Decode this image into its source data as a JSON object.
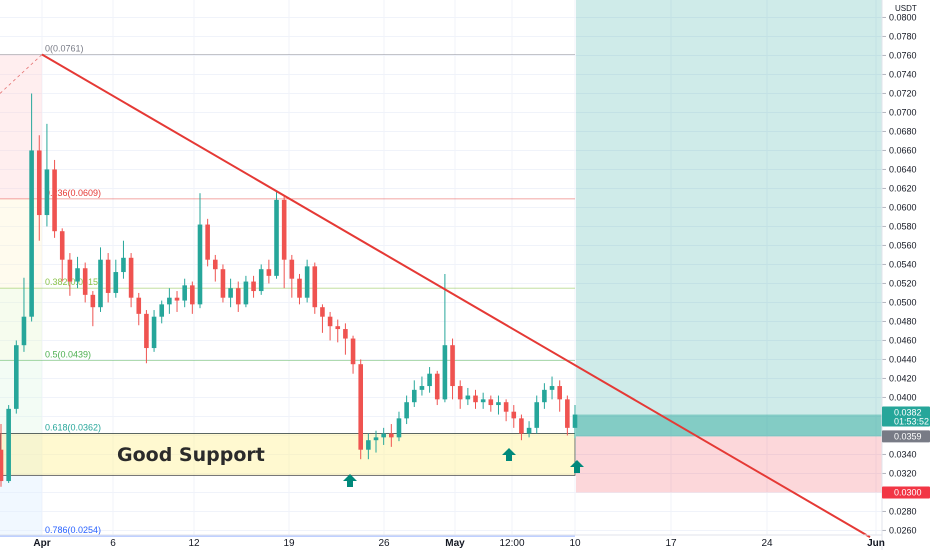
{
  "chart_data": {
    "type": "candlestick",
    "currency": "USDT",
    "y_ticks": [
      "0.0800",
      "0.0780",
      "0.0760",
      "0.0740",
      "0.0720",
      "0.0700",
      "0.0680",
      "0.0660",
      "0.0640",
      "0.0620",
      "0.0600",
      "0.0580",
      "0.0560",
      "0.0540",
      "0.0520",
      "0.0500",
      "0.0480",
      "0.0460",
      "0.0440",
      "0.0420",
      "0.0400",
      "0.0380",
      "0.0360",
      "0.0340",
      "0.0320",
      "0.0300",
      "0.0280",
      "0.0260"
    ],
    "x_ticks": [
      {
        "label": "Apr",
        "bold": true
      },
      {
        "label": "6",
        "bold": false
      },
      {
        "label": "12",
        "bold": false
      },
      {
        "label": "19",
        "bold": false
      },
      {
        "label": "26",
        "bold": false
      },
      {
        "label": "May",
        "bold": true
      },
      {
        "label": "12:00",
        "bold": false
      },
      {
        "label": "10",
        "bold": false
      },
      {
        "label": "17",
        "bold": false
      },
      {
        "label": "24",
        "bold": false
      },
      {
        "label": "Jun",
        "bold": true
      }
    ],
    "fibonacci": [
      {
        "label": "0(0.0761)",
        "value": 0.0761,
        "color": "#787b86"
      },
      {
        "label": "0.236(0.0609)",
        "value": 0.0609,
        "color": "#e53935"
      },
      {
        "label": "0.382(0.0515)",
        "value": 0.0515,
        "color": "#8bc34a"
      },
      {
        "label": "0.5(0.0439)",
        "value": 0.0439,
        "color": "#4caf50"
      },
      {
        "label": "0.618(0.0362)",
        "value": 0.0362,
        "color": "#26a69a"
      },
      {
        "label": "0.786(0.0254)",
        "value": 0.0254,
        "color": "#2962ff"
      }
    ],
    "support_zone": {
      "label": "Good Support",
      "top": 0.0362,
      "bottom": 0.0318
    },
    "trendline": {
      "from": 0.0761,
      "to": 0.0253
    },
    "position": {
      "entry": 0.0359,
      "stop": 0.03,
      "target": 0.08
    },
    "price_tags": [
      {
        "value": "0.0382",
        "sub": "01:53:52",
        "color": "#26a69a"
      },
      {
        "value": "0.0359",
        "color": "#787b86"
      },
      {
        "value": "0.0300",
        "color": "#f23645"
      }
    ],
    "candles": [
      [
        0.0345,
        0.0312,
        0.0372,
        0.0306
      ],
      [
        0.0312,
        0.0388,
        0.0392,
        0.031
      ],
      [
        0.0388,
        0.0455,
        0.046,
        0.0383
      ],
      [
        0.0455,
        0.0485,
        0.0526,
        0.0448
      ],
      [
        0.0485,
        0.066,
        0.072,
        0.048
      ],
      [
        0.066,
        0.0592,
        0.0676,
        0.0565
      ],
      [
        0.0592,
        0.064,
        0.0688,
        0.058
      ],
      [
        0.064,
        0.0575,
        0.065,
        0.0568
      ],
      [
        0.0575,
        0.0545,
        0.0578,
        0.0522
      ],
      [
        0.0545,
        0.0522,
        0.0552,
        0.0507
      ],
      [
        0.0522,
        0.0536,
        0.0548,
        0.0515
      ],
      [
        0.0536,
        0.0508,
        0.0542,
        0.05
      ],
      [
        0.0508,
        0.0495,
        0.0512,
        0.0475
      ],
      [
        0.0495,
        0.0545,
        0.0558,
        0.049
      ],
      [
        0.0545,
        0.051,
        0.0552,
        0.05
      ],
      [
        0.051,
        0.0532,
        0.0545,
        0.0505
      ],
      [
        0.0532,
        0.0547,
        0.0565,
        0.0525
      ],
      [
        0.0547,
        0.0505,
        0.0552,
        0.0495
      ],
      [
        0.0505,
        0.0488,
        0.051,
        0.0476
      ],
      [
        0.0488,
        0.0452,
        0.0492,
        0.0436
      ],
      [
        0.0452,
        0.0485,
        0.0492,
        0.0448
      ],
      [
        0.0485,
        0.0498,
        0.0502,
        0.0478
      ],
      [
        0.0498,
        0.0505,
        0.0515,
        0.0488
      ],
      [
        0.0505,
        0.0502,
        0.0512,
        0.049
      ],
      [
        0.0502,
        0.0518,
        0.0525,
        0.0495
      ],
      [
        0.0518,
        0.0498,
        0.0522,
        0.0488
      ],
      [
        0.0498,
        0.0582,
        0.0615,
        0.0494
      ],
      [
        0.0582,
        0.0545,
        0.0588,
        0.0538
      ],
      [
        0.0545,
        0.0535,
        0.055,
        0.0522
      ],
      [
        0.0535,
        0.0505,
        0.054,
        0.05
      ],
      [
        0.0505,
        0.0515,
        0.0525,
        0.0495
      ],
      [
        0.0515,
        0.0498,
        0.0522,
        0.049
      ],
      [
        0.0498,
        0.0522,
        0.0528,
        0.0495
      ],
      [
        0.0522,
        0.0512,
        0.0528,
        0.0505
      ],
      [
        0.0512,
        0.0535,
        0.054,
        0.0508
      ],
      [
        0.0535,
        0.0528,
        0.0545,
        0.052
      ],
      [
        0.0528,
        0.0608,
        0.0618,
        0.0525
      ],
      [
        0.0608,
        0.0545,
        0.0612,
        0.0515
      ],
      [
        0.0545,
        0.0525,
        0.055,
        0.0505
      ],
      [
        0.0525,
        0.0505,
        0.053,
        0.0498
      ],
      [
        0.0505,
        0.0538,
        0.0545,
        0.05
      ],
      [
        0.0538,
        0.0495,
        0.0542,
        0.0488
      ],
      [
        0.0495,
        0.0485,
        0.0498,
        0.0468
      ],
      [
        0.0485,
        0.0475,
        0.049,
        0.046
      ],
      [
        0.0475,
        0.0472,
        0.0482,
        0.0458
      ],
      [
        0.0472,
        0.0462,
        0.0478,
        0.0445
      ],
      [
        0.0462,
        0.0435,
        0.0465,
        0.0425
      ],
      [
        0.0435,
        0.0345,
        0.044,
        0.0335
      ],
      [
        0.0345,
        0.0355,
        0.0362,
        0.0335
      ],
      [
        0.0355,
        0.0358,
        0.0365,
        0.0342
      ],
      [
        0.0358,
        0.0362,
        0.0368,
        0.035
      ],
      [
        0.0362,
        0.0358,
        0.0372,
        0.0348
      ],
      [
        0.0358,
        0.0378,
        0.0385,
        0.0354
      ],
      [
        0.0378,
        0.0395,
        0.0402,
        0.0372
      ],
      [
        0.0395,
        0.0408,
        0.0418,
        0.039
      ],
      [
        0.0408,
        0.0412,
        0.0422,
        0.0402
      ],
      [
        0.0412,
        0.0425,
        0.0432,
        0.0405
      ],
      [
        0.0425,
        0.0398,
        0.0428,
        0.0392
      ],
      [
        0.0398,
        0.0455,
        0.053,
        0.0395
      ],
      [
        0.0455,
        0.0412,
        0.0462,
        0.0398
      ],
      [
        0.0412,
        0.0398,
        0.0418,
        0.0388
      ],
      [
        0.0398,
        0.0402,
        0.041,
        0.0392
      ],
      [
        0.0402,
        0.0395,
        0.0408,
        0.0388
      ],
      [
        0.0395,
        0.0398,
        0.0405,
        0.0388
      ],
      [
        0.0398,
        0.0392,
        0.0402,
        0.0385
      ],
      [
        0.0392,
        0.0395,
        0.0402,
        0.0382
      ],
      [
        0.0395,
        0.0385,
        0.0398,
        0.0375
      ],
      [
        0.0385,
        0.0378,
        0.0392,
        0.0368
      ],
      [
        0.0378,
        0.0362,
        0.0382,
        0.0355
      ],
      [
        0.0362,
        0.0368,
        0.0375,
        0.0358
      ],
      [
        0.0368,
        0.0395,
        0.0402,
        0.0362
      ],
      [
        0.0395,
        0.0408,
        0.0415,
        0.0388
      ],
      [
        0.0408,
        0.0412,
        0.0422,
        0.0398
      ],
      [
        0.0412,
        0.0398,
        0.0418,
        0.0385
      ],
      [
        0.0398,
        0.0368,
        0.0402,
        0.036
      ],
      [
        0.0368,
        0.0382,
        0.0392,
        0.0357
      ]
    ]
  }
}
